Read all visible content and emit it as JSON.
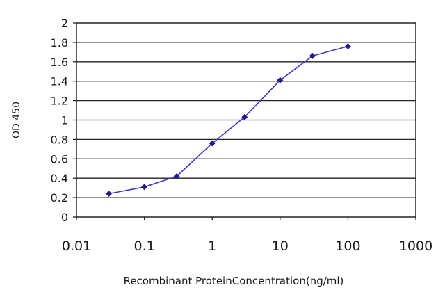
{
  "chart_data": {
    "type": "scatter",
    "title": "",
    "xlabel": "Recombinant ProteinConcentration(ng/ml)",
    "ylabel": "OD 450",
    "xscale": "log",
    "xlim": [
      0.01,
      1000
    ],
    "ylim": [
      0,
      2
    ],
    "xticks": [
      "0.01",
      "0.1",
      "1",
      "10",
      "100",
      "1000"
    ],
    "yticks": [
      "0",
      "0.2",
      "0.4",
      "0.6",
      "0.8",
      "1",
      "1.2",
      "1.4",
      "1.6",
      "1.8",
      "2"
    ],
    "grid": true,
    "line_color": "#3b3bcc",
    "marker_color": "#1d1d8a",
    "series": [
      {
        "x": [
          0.03,
          0.1,
          0.3,
          1,
          3,
          10,
          30,
          100
        ],
        "y": [
          0.24,
          0.31,
          0.42,
          0.76,
          1.03,
          1.41,
          1.66,
          1.76
        ]
      }
    ]
  }
}
